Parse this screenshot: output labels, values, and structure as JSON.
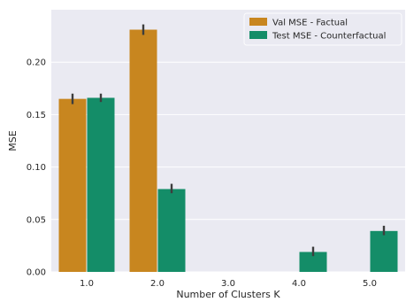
{
  "chart_data": {
    "type": "bar",
    "xlabel": "Number of Clusters K",
    "ylabel": "MSE",
    "categories": [
      "1.0",
      "2.0",
      "3.0",
      "4.0",
      "5.0"
    ],
    "ylim": [
      0,
      0.25
    ],
    "yticks": [
      "0.00",
      "0.05",
      "0.10",
      "0.15",
      "0.20"
    ],
    "grid": true,
    "legend_position": "top-right",
    "series": [
      {
        "name": "Val MSE - Factual",
        "color": "#c8861f",
        "values": [
          0.165,
          0.231,
          0.0,
          0.0,
          0.0
        ],
        "err_low": [
          0.16,
          0.226,
          null,
          null,
          null
        ],
        "err_high": [
          0.17,
          0.236,
          null,
          null,
          null
        ]
      },
      {
        "name": "Test MSE - Counterfactual",
        "color": "#148d68",
        "values": [
          0.166,
          0.079,
          0.0,
          0.019,
          0.039
        ],
        "err_low": [
          0.162,
          0.075,
          null,
          0.015,
          0.035
        ],
        "err_high": [
          0.17,
          0.084,
          null,
          0.024,
          0.044
        ]
      }
    ]
  }
}
